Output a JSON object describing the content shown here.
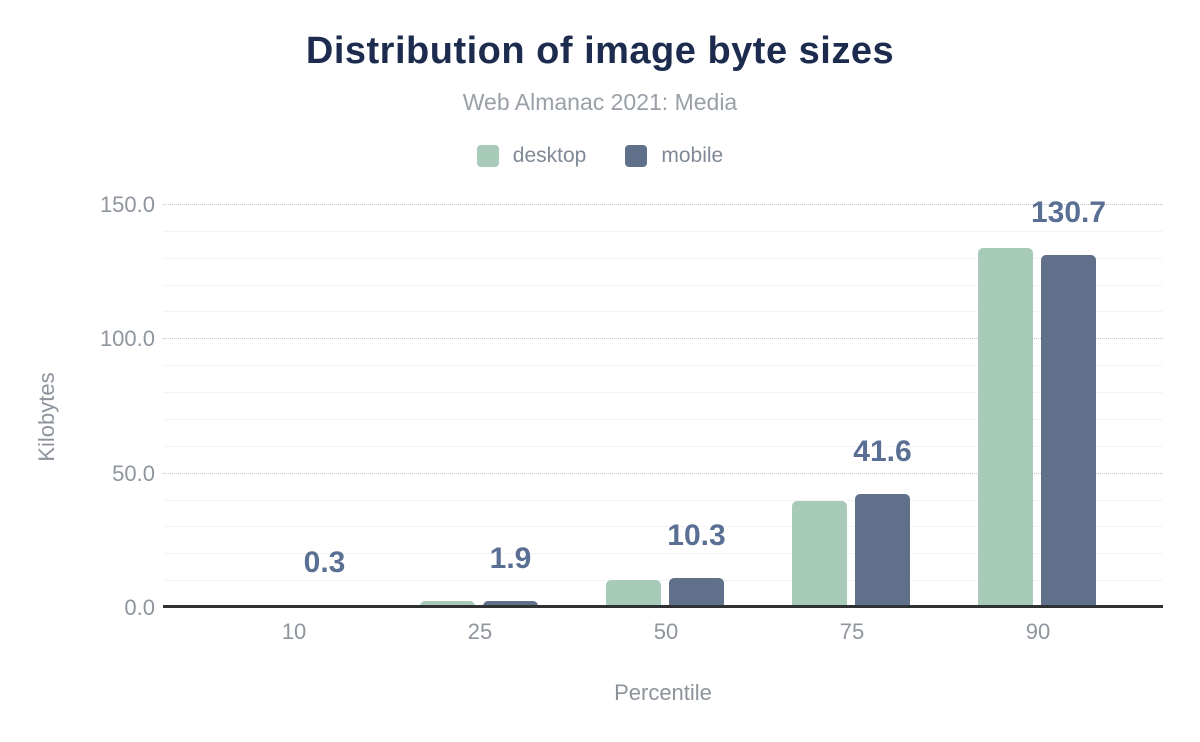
{
  "header": {
    "title": "Distribution of image byte sizes",
    "subtitle": "Web Almanac 2021: Media"
  },
  "chart_data": {
    "type": "bar",
    "title": "Distribution of image byte sizes",
    "subtitle": "Web Almanac 2021: Media",
    "xlabel": "Percentile",
    "ylabel": "Kilobytes",
    "categories": [
      "10",
      "25",
      "50",
      "75",
      "90"
    ],
    "series": [
      {
        "name": "desktop",
        "color": "#a8cab9",
        "values": [
          0.3,
          1.7,
          9.8,
          39.0,
          133.3
        ]
      },
      {
        "name": "mobile",
        "color": "#60708a",
        "values": [
          0.3,
          1.9,
          10.3,
          41.6,
          130.7
        ]
      }
    ],
    "data_labels": {
      "attached_to": "mobile",
      "values": [
        "0.3",
        "1.9",
        "10.3",
        "41.6",
        "130.7"
      ],
      "color": "#5a6f94"
    },
    "y_ticks": [
      "0.0",
      "50.0",
      "100.0",
      "150.0"
    ],
    "ylim": [
      0,
      150
    ],
    "grid": {
      "minor_interval": 10,
      "major_interval": 50,
      "minor_style": "solid",
      "major_style": "dotted"
    },
    "legend_position": "top",
    "axis_line_color": "#2f3133",
    "background_color": "#ffffff"
  }
}
